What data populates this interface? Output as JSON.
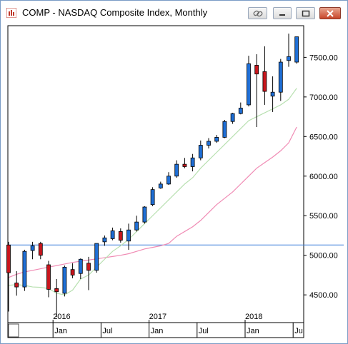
{
  "window": {
    "title": "COMP - NASDAQ Composite Index, Monthly",
    "buttons": [
      {
        "name": "link-button",
        "icon": "chain-link-icon"
      },
      {
        "name": "minimize-button",
        "icon": "minimize-icon"
      },
      {
        "name": "maximize-button",
        "icon": "maximize-icon"
      },
      {
        "name": "close-button",
        "icon": "close-icon"
      }
    ]
  },
  "colors": {
    "up_candle": "#1f6fd6",
    "down_candle": "#c8161d",
    "ma_short": "#b8e0b0",
    "ma_long": "#f08bb4",
    "reference_line": "#3a7fd9",
    "frame": "#000000"
  },
  "chart_data": {
    "type": "candlestick",
    "symbol": "COMP",
    "interval": "Monthly",
    "ylim": [
      4150,
      7900
    ],
    "y_ticks": [
      "4500.00",
      "5000.00",
      "5500.00",
      "6000.00",
      "6500.00",
      "7000.00",
      "7500.00"
    ],
    "y_tick_values": [
      4500,
      5000,
      5500,
      6000,
      6500,
      7000,
      7500
    ],
    "x_ticks_month": [
      "Jan",
      "Jul",
      "Jan",
      "Jul",
      "Jan",
      "Jul"
    ],
    "x_ticks_year": [
      "2016",
      "2017",
      "2018"
    ],
    "x_tick_month_index": [
      6,
      12,
      18,
      24,
      30,
      36
    ],
    "x_tick_year_index": [
      6,
      18,
      30
    ],
    "reference_line_value": 5130,
    "candles": [
      {
        "date": "2015-07",
        "o": 5130,
        "h": 5170,
        "l": 4290,
        "c": 4780
      },
      {
        "date": "2015-08",
        "o": 4650,
        "h": 4800,
        "l": 4490,
        "c": 4600
      },
      {
        "date": "2015-09",
        "o": 4600,
        "h": 5070,
        "l": 4550,
        "c": 5050
      },
      {
        "date": "2015-10",
        "o": 5060,
        "h": 5170,
        "l": 4950,
        "c": 5120
      },
      {
        "date": "2015-11",
        "o": 5150,
        "h": 5170,
        "l": 4950,
        "c": 5000
      },
      {
        "date": "2015-12",
        "o": 4880,
        "h": 4930,
        "l": 4470,
        "c": 4570
      },
      {
        "date": "2016-01",
        "o": 4580,
        "h": 4700,
        "l": 4220,
        "c": 4540
      },
      {
        "date": "2016-02",
        "o": 4520,
        "h": 4870,
        "l": 4480,
        "c": 4850
      },
      {
        "date": "2016-03",
        "o": 4820,
        "h": 4900,
        "l": 4710,
        "c": 4750
      },
      {
        "date": "2016-04",
        "o": 4770,
        "h": 4960,
        "l": 4700,
        "c": 4950
      },
      {
        "date": "2016-05",
        "o": 4900,
        "h": 4980,
        "l": 4560,
        "c": 4810
      },
      {
        "date": "2016-06",
        "o": 4810,
        "h": 5150,
        "l": 4780,
        "c": 5150
      },
      {
        "date": "2016-07",
        "o": 5170,
        "h": 5250,
        "l": 5120,
        "c": 5220
      },
      {
        "date": "2016-08",
        "o": 5210,
        "h": 5350,
        "l": 5190,
        "c": 5310
      },
      {
        "date": "2016-09",
        "o": 5300,
        "h": 5340,
        "l": 5160,
        "c": 5190
      },
      {
        "date": "2016-10",
        "o": 5180,
        "h": 5400,
        "l": 5070,
        "c": 5320
      },
      {
        "date": "2016-11",
        "o": 5320,
        "h": 5500,
        "l": 5300,
        "c": 5420
      },
      {
        "date": "2016-12",
        "o": 5420,
        "h": 5620,
        "l": 5400,
        "c": 5610
      },
      {
        "date": "2017-01",
        "o": 5640,
        "h": 5860,
        "l": 5620,
        "c": 5830
      },
      {
        "date": "2017-02",
        "o": 5850,
        "h": 5930,
        "l": 5840,
        "c": 5900
      },
      {
        "date": "2017-03",
        "o": 5900,
        "h": 6050,
        "l": 5890,
        "c": 6000
      },
      {
        "date": "2017-04",
        "o": 6000,
        "h": 6200,
        "l": 5980,
        "c": 6150
      },
      {
        "date": "2017-05",
        "o": 6150,
        "h": 6230,
        "l": 6100,
        "c": 6120
      },
      {
        "date": "2017-06",
        "o": 6120,
        "h": 6280,
        "l": 6060,
        "c": 6230
      },
      {
        "date": "2017-07",
        "o": 6230,
        "h": 6450,
        "l": 6200,
        "c": 6390
      },
      {
        "date": "2017-08",
        "o": 6390,
        "h": 6480,
        "l": 6350,
        "c": 6440
      },
      {
        "date": "2017-09",
        "o": 6440,
        "h": 6520,
        "l": 6420,
        "c": 6490
      },
      {
        "date": "2017-10",
        "o": 6490,
        "h": 6710,
        "l": 6480,
        "c": 6690
      },
      {
        "date": "2017-11",
        "o": 6690,
        "h": 6800,
        "l": 6660,
        "c": 6790
      },
      {
        "date": "2017-12",
        "o": 6790,
        "h": 6930,
        "l": 6780,
        "c": 6860
      },
      {
        "date": "2018-01",
        "o": 6900,
        "h": 7520,
        "l": 6880,
        "c": 7420
      },
      {
        "date": "2018-02",
        "o": 7400,
        "h": 7540,
        "l": 6620,
        "c": 7290
      },
      {
        "date": "2018-03",
        "o": 7320,
        "h": 7640,
        "l": 6900,
        "c": 7070
      },
      {
        "date": "2018-04",
        "o": 7010,
        "h": 7260,
        "l": 6810,
        "c": 7060
      },
      {
        "date": "2018-05",
        "o": 7060,
        "h": 7480,
        "l": 6950,
        "c": 7440
      },
      {
        "date": "2018-06",
        "o": 7460,
        "h": 7800,
        "l": 7380,
        "c": 7510
      },
      {
        "date": "2018-07",
        "o": 7440,
        "h": 7760,
        "l": 7420,
        "c": 7760
      }
    ],
    "ma_short": [
      4620,
      4630,
      4620,
      4600,
      4595,
      4580,
      4520,
      4500,
      4560,
      4700,
      4750,
      4850,
      4950,
      5050,
      5120,
      5200,
      5300,
      5400,
      5500,
      5600,
      5700,
      5800,
      5900,
      5980,
      6100,
      6200,
      6300,
      6400,
      6500,
      6600,
      6700,
      6750,
      6800,
      6850,
      6900,
      6970,
      7110
    ],
    "ma_long": [
      4720,
      4760,
      4790,
      4810,
      4830,
      4850,
      4870,
      4890,
      4910,
      4925,
      4940,
      4955,
      4970,
      4985,
      5000,
      5020,
      5050,
      5080,
      5100,
      5120,
      5150,
      5240,
      5300,
      5360,
      5440,
      5540,
      5640,
      5720,
      5800,
      5900,
      6000,
      6100,
      6170,
      6240,
      6320,
      6420,
      6620
    ]
  }
}
